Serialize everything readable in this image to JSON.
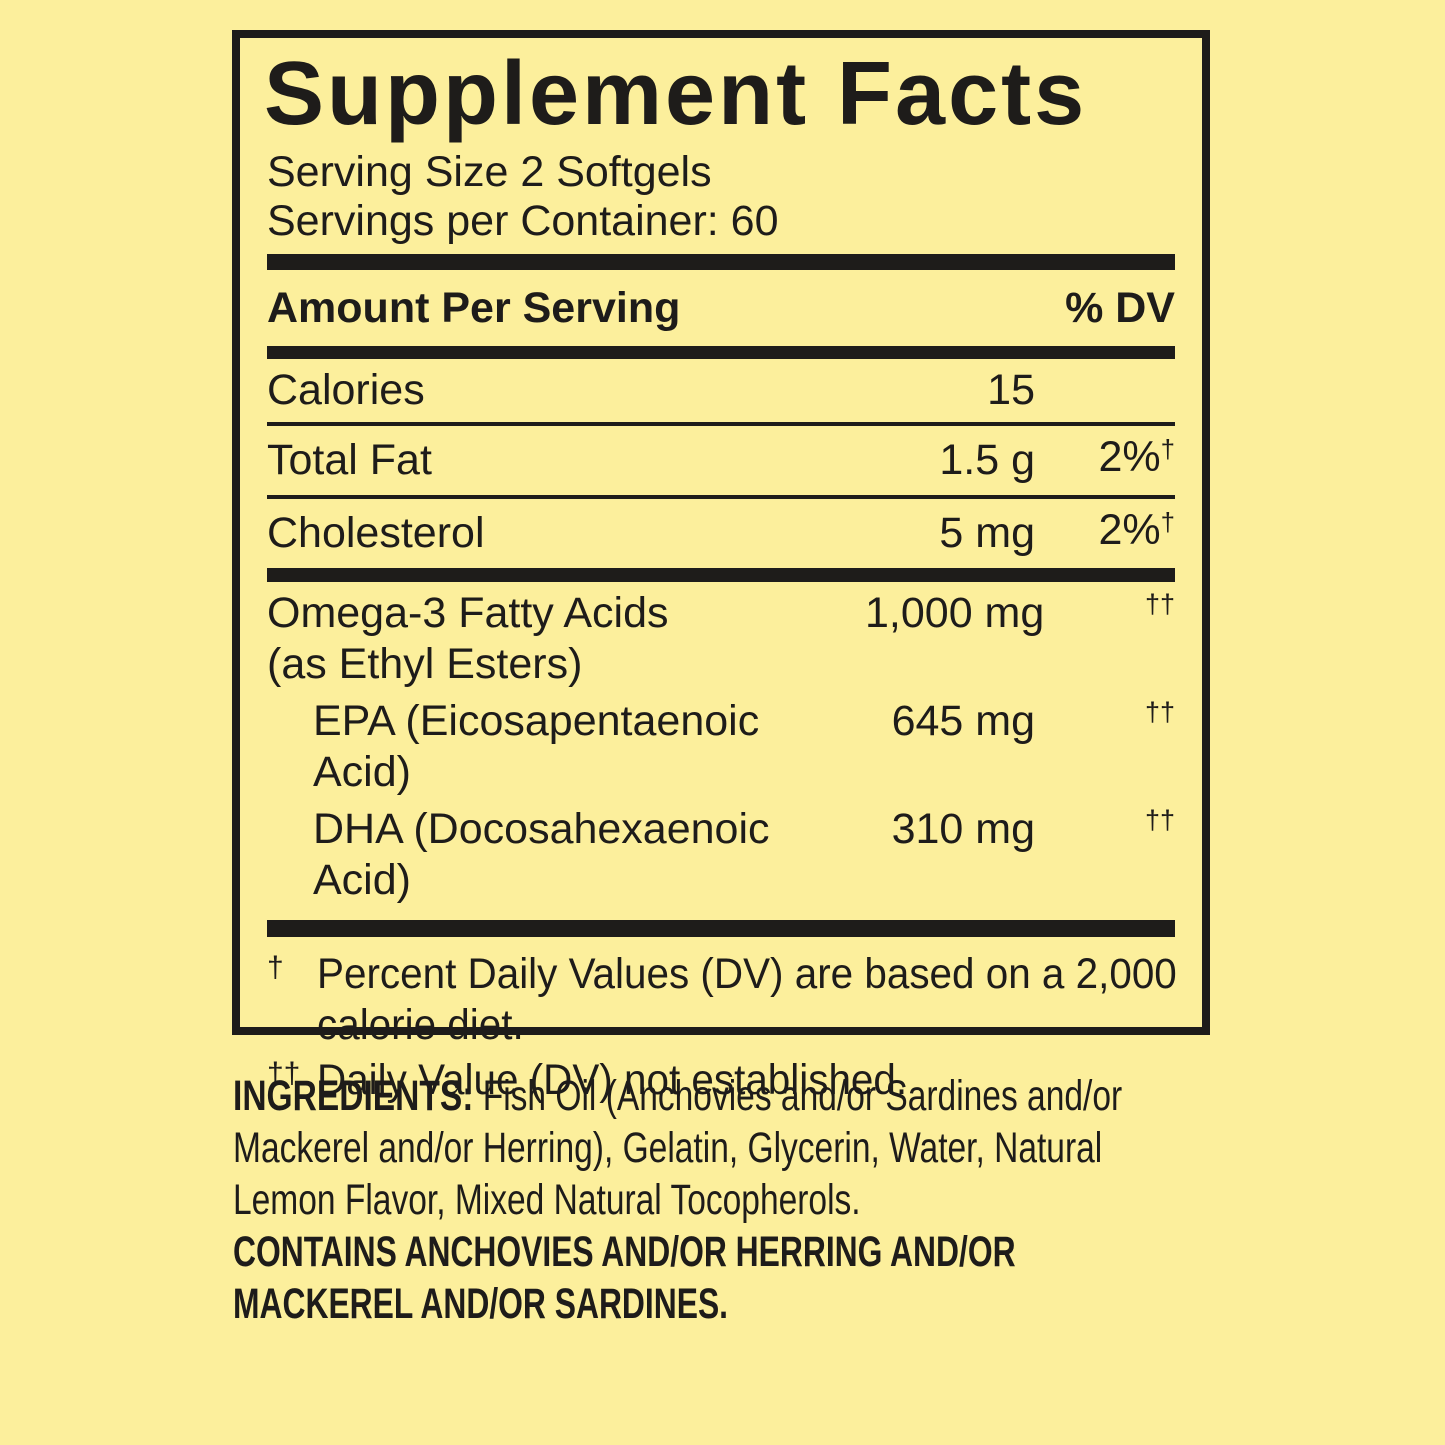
{
  "colors": {
    "background": "#fcef9c",
    "ink": "#1e1c1a"
  },
  "panel": {
    "title": "Supplement Facts",
    "serving_size": "Serving Size 2 Softgels",
    "servings_per_container": "Servings per Container: 60",
    "header": {
      "amount_label": "Amount Per Serving",
      "dv_label": "% DV"
    },
    "rows": [
      {
        "name": "Calories",
        "amount": "15",
        "dv": "",
        "dagger": ""
      },
      {
        "name": "Total Fat",
        "amount": "1.5 g",
        "dv": "2%",
        "dagger": "†"
      },
      {
        "name": "Cholesterol",
        "amount": "5 mg",
        "dv": "2%",
        "dagger": "†"
      }
    ],
    "omega_rows": [
      {
        "name": "Omega-3 Fatty Acids",
        "name2": "(as Ethyl Esters)",
        "amount": "1,000 mg",
        "dv": "††"
      },
      {
        "name": "EPA (Eicosapentaenoic Acid)",
        "amount": "645 mg",
        "dv": "††"
      },
      {
        "name": "DHA (Docosahexaenoic Acid)",
        "amount": "310 mg",
        "dv": "††"
      }
    ],
    "footnotes": [
      {
        "symbol": "†",
        "lines": [
          "Percent Daily Values (DV) are based on a 2,000",
          "calorie diet."
        ]
      },
      {
        "symbol": "††",
        "lines": [
          "Daily Value (DV) not established."
        ]
      }
    ]
  },
  "ingredients": {
    "label": "INGREDIENTS:",
    "lines": [
      " Fish Oil (Anchovies and/or Sardines and/or",
      "Mackerel and/or Herring), Gelatin, Glycerin, Water, Natural",
      "Lemon Flavor, Mixed Natural Tocopherols."
    ],
    "contains_lines": [
      "CONTAINS ANCHOVIES AND/OR HERRING AND/OR",
      "MACKEREL AND/OR SARDINES."
    ]
  }
}
